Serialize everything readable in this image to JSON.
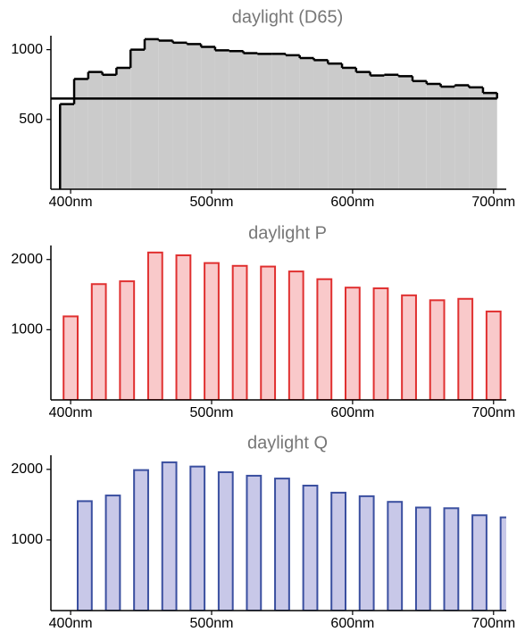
{
  "chart_data": [
    {
      "type": "histogram",
      "title": "daylight (D65)",
      "bins": [
        392.5,
        402.5,
        412.5,
        422.5,
        432.5,
        442.5,
        452.5,
        462.5,
        472.5,
        482.5,
        492.5,
        502.5,
        512.5,
        522.5,
        532.5,
        542.5,
        552.5,
        562.5,
        572.5,
        582.5,
        592.5,
        602.5,
        612.5,
        622.5,
        632.5,
        642.5,
        652.5,
        662.5,
        672.5,
        682.5,
        692.5,
        702.5
      ],
      "values": [
        610,
        790,
        840,
        820,
        870,
        1000,
        1075,
        1065,
        1050,
        1040,
        1020,
        995,
        990,
        975,
        970,
        970,
        960,
        940,
        925,
        900,
        870,
        840,
        815,
        820,
        810,
        775,
        755,
        735,
        745,
        730,
        690,
        650
      ],
      "color": "#cbcbcb",
      "edge_color": "#000000",
      "xlim": [
        386,
        709
      ],
      "xticks": [
        {
          "value": 400,
          "label": "400nm"
        },
        {
          "value": 500,
          "label": "500nm"
        },
        {
          "value": 600,
          "label": "600nm"
        },
        {
          "value": 700,
          "label": "700nm"
        }
      ],
      "ylim": [
        0,
        1100
      ],
      "yticks": [
        500,
        1000
      ]
    },
    {
      "type": "bar",
      "title": "daylight P",
      "x": [
        400,
        420,
        440,
        460,
        480,
        500,
        520,
        540,
        560,
        580,
        600,
        620,
        640,
        660,
        680,
        700
      ],
      "values": [
        1190,
        1650,
        1690,
        2100,
        2060,
        1950,
        1910,
        1900,
        1830,
        1720,
        1600,
        1590,
        1490,
        1420,
        1440,
        1260
      ],
      "color": "#f9c9ca",
      "edge_color": "#e03030",
      "xlim": [
        386,
        709
      ],
      "xticks": [
        {
          "value": 400,
          "label": "400nm"
        },
        {
          "value": 500,
          "label": "500nm"
        },
        {
          "value": 600,
          "label": "600nm"
        },
        {
          "value": 700,
          "label": "700nm"
        }
      ],
      "ylim": [
        0,
        2200
      ],
      "yticks": [
        1000,
        2000
      ]
    },
    {
      "type": "bar",
      "title": "daylight Q",
      "x": [
        410,
        430,
        450,
        470,
        490,
        510,
        530,
        550,
        570,
        590,
        610,
        630,
        650,
        670,
        690,
        710
      ],
      "values": [
        1550,
        1630,
        1990,
        2100,
        2040,
        1960,
        1910,
        1870,
        1770,
        1670,
        1620,
        1540,
        1460,
        1450,
        1350,
        1320
      ],
      "color": "#c8c8e8",
      "edge_color": "#3a4fa0",
      "xlim": [
        386,
        709
      ],
      "xticks": [
        {
          "value": 400,
          "label": "400nm"
        },
        {
          "value": 500,
          "label": "500nm"
        },
        {
          "value": 600,
          "label": "600nm"
        },
        {
          "value": 700,
          "label": "700nm"
        }
      ],
      "ylim": [
        0,
        2200
      ],
      "yticks": [
        1000,
        2000
      ]
    }
  ]
}
